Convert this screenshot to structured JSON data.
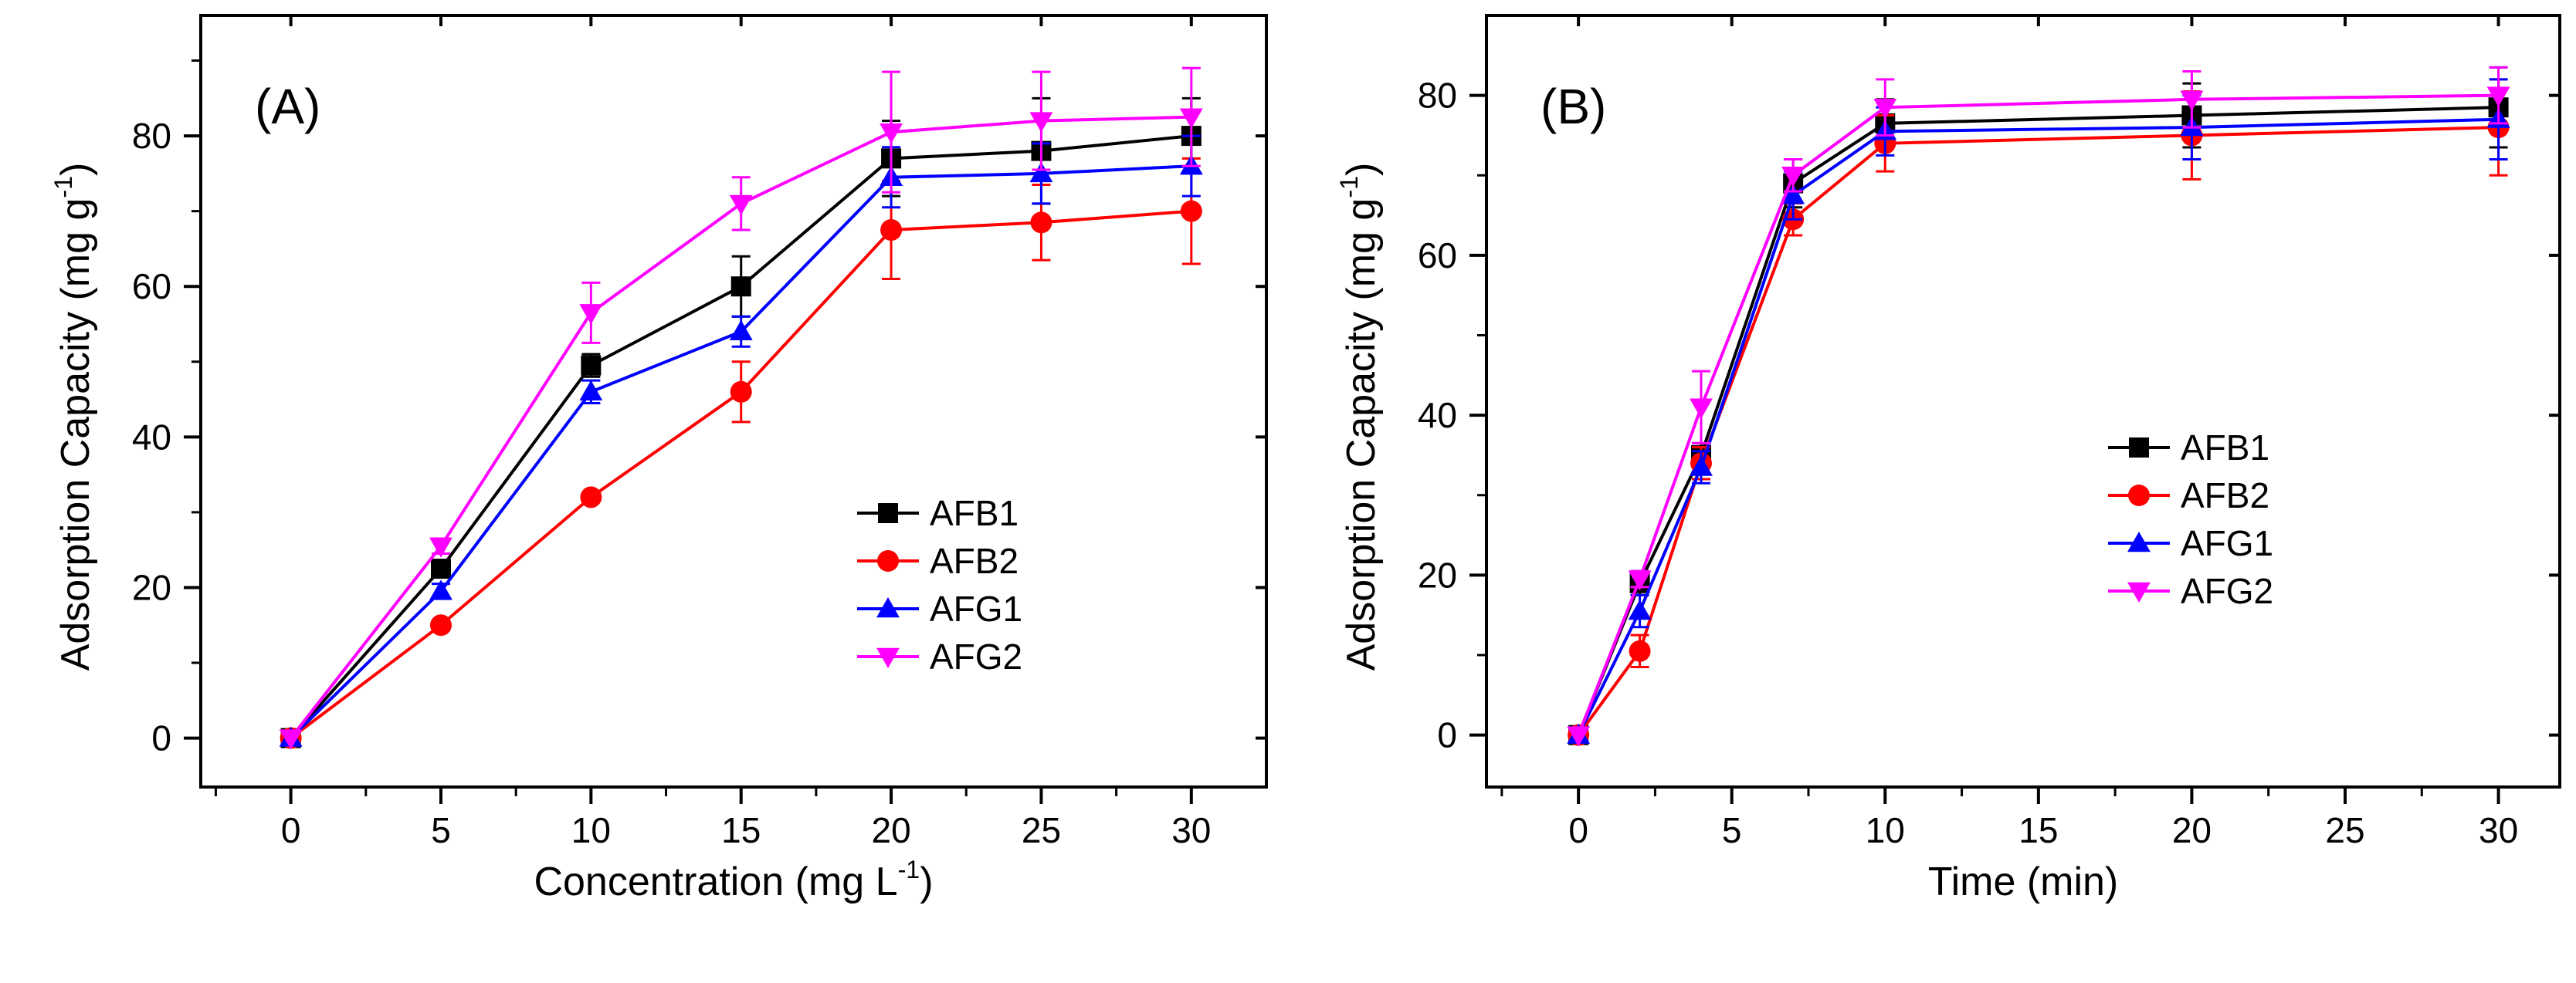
{
  "chart_data": [
    {
      "type": "line",
      "panel_label": "(A)",
      "xlabel": "Concentration (mg L",
      "xlabel_sup": "-1",
      "xlabel_close": ")",
      "ylabel": "Adsorption Capacity (mg g",
      "ylabel_sup": "-1",
      "ylabel_close": ")",
      "xlim": [
        -3,
        32.5
      ],
      "ylim": [
        -6.5,
        96
      ],
      "xticks": [
        0,
        5,
        10,
        15,
        20,
        25,
        30
      ],
      "xtick_labels": [
        "0",
        "5",
        "10",
        "15",
        "20",
        "25",
        "30"
      ],
      "yticks": [
        0,
        20,
        40,
        60,
        80
      ],
      "ytick_labels": [
        "0",
        "20",
        "40",
        "60",
        "80"
      ],
      "legend_position": "center-right",
      "x": [
        0,
        5,
        10,
        15,
        20,
        25,
        30
      ],
      "series": [
        {
          "name": "AFB1",
          "color": "#000000",
          "marker": "square",
          "values": [
            0,
            22.5,
            49.5,
            60,
            77,
            78,
            80
          ],
          "errors": [
            0,
            1,
            1.5,
            4,
            5,
            7,
            5
          ]
        },
        {
          "name": "AFB2",
          "color": "#ff0000",
          "marker": "circle",
          "values": [
            0,
            15,
            32,
            46,
            67.5,
            68.5,
            70
          ],
          "errors": [
            0,
            0.5,
            0.5,
            4,
            6.5,
            5,
            7
          ]
        },
        {
          "name": "AFG1",
          "color": "#0000ff",
          "marker": "triangle-up",
          "values": [
            0,
            19.5,
            46,
            54,
            74.5,
            75,
            76
          ],
          "errors": [
            0,
            1,
            1.5,
            2,
            4,
            4,
            4
          ]
        },
        {
          "name": "AFG2",
          "color": "#ff00ff",
          "marker": "triangle-down",
          "values": [
            0,
            25.5,
            56.5,
            71,
            80.5,
            82,
            82.5
          ],
          "errors": [
            0,
            1,
            4,
            3.5,
            8,
            6.5,
            6.5
          ]
        }
      ]
    },
    {
      "type": "line",
      "panel_label": "(B)",
      "xlabel": "Time (min)",
      "xlabel_sup": "",
      "xlabel_close": "",
      "ylabel": "Adsorption Capacity (mg g",
      "ylabel_sup": "-1",
      "ylabel_close": ")",
      "xlim": [
        -3,
        32
      ],
      "ylim": [
        -6.5,
        90
      ],
      "xticks": [
        0,
        5,
        10,
        15,
        20,
        25,
        30
      ],
      "xtick_labels": [
        "0",
        "5",
        "10",
        "15",
        "20",
        "25",
        "30"
      ],
      "yticks": [
        0,
        20,
        40,
        60,
        80
      ],
      "ytick_labels": [
        "0",
        "20",
        "40",
        "60",
        "80"
      ],
      "legend_position": "center-right",
      "x": [
        0,
        2,
        4,
        7,
        10,
        20,
        30
      ],
      "series": [
        {
          "name": "AFB1",
          "color": "#000000",
          "marker": "square",
          "values": [
            0,
            19,
            35,
            69,
            76.5,
            77.5,
            78.5
          ],
          "errors": [
            0,
            1.5,
            1.5,
            3,
            3,
            4,
            5
          ]
        },
        {
          "name": "AFB2",
          "color": "#ff0000",
          "marker": "circle",
          "values": [
            0,
            10.5,
            34,
            64.5,
            74,
            75,
            76
          ],
          "errors": [
            0,
            2,
            2,
            2,
            3.5,
            5.5,
            6
          ]
        },
        {
          "name": "AFG1",
          "color": "#0000ff",
          "marker": "triangle-up",
          "values": [
            0,
            15.5,
            33.5,
            67.5,
            75.5,
            76,
            77
          ],
          "errors": [
            0,
            2,
            2,
            3,
            3,
            4,
            5
          ]
        },
        {
          "name": "AFG2",
          "color": "#ff00ff",
          "marker": "triangle-down",
          "values": [
            0,
            19.5,
            41,
            70,
            78.5,
            79.5,
            80
          ],
          "errors": [
            0,
            1,
            4.5,
            2,
            3.5,
            3.5,
            3.5
          ]
        }
      ]
    }
  ]
}
